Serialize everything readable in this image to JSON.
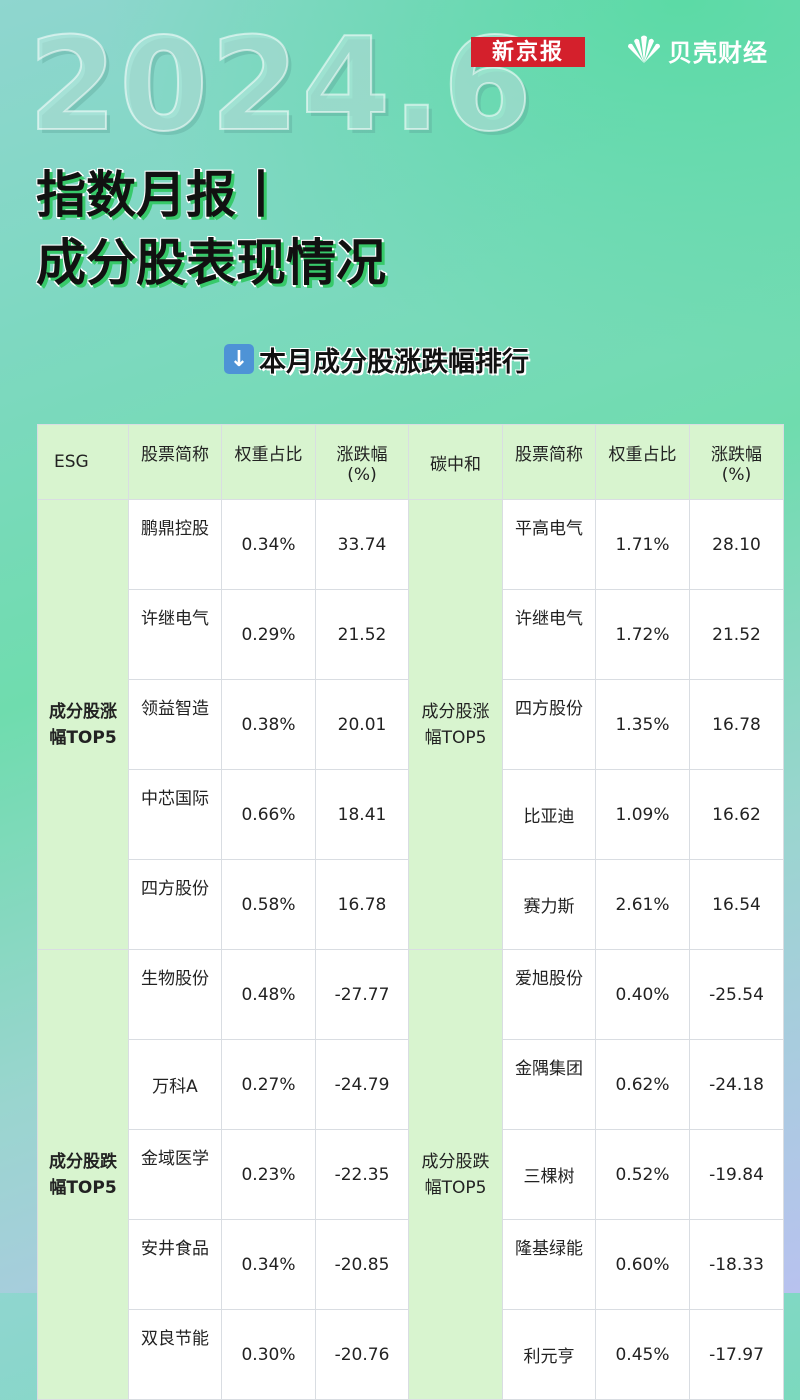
{
  "header": {
    "year": "2024.6",
    "brand_xinjingbao": "新京报",
    "brand_beike": "贝壳财经",
    "title_line1": "指数月报丨",
    "title_line2": "成分股表现情况",
    "subtitle": "本月成分股涨跌幅排行"
  },
  "table": {
    "headers": {
      "esg": "ESG",
      "name": "股票简称",
      "weight": "权重占比",
      "change_l1": "涨跌幅",
      "change_l2": "(%)",
      "tanzhonghe": "碳中和"
    },
    "categories": {
      "gain_l1": "成分股涨",
      "gain_l2": "幅TOP5",
      "loss_l1": "成分股跌",
      "loss_l2": "幅TOP5"
    },
    "rows": [
      {
        "esg_name": "鹏鼎控股",
        "esg_weight": "0.34%",
        "esg_change": "33.74",
        "c_name": "平高电气",
        "c_weight": "1.71%",
        "c_change": "28.10"
      },
      {
        "esg_name": "许继电气",
        "esg_weight": "0.29%",
        "esg_change": "21.52",
        "c_name": "许继电气",
        "c_weight": "1.72%",
        "c_change": "21.52"
      },
      {
        "esg_name": "领益智造",
        "esg_weight": "0.38%",
        "esg_change": "20.01",
        "c_name": "四方股份",
        "c_weight": "1.35%",
        "c_change": "16.78"
      },
      {
        "esg_name": "中芯国际",
        "esg_weight": "0.66%",
        "esg_change": "18.41",
        "c_name": "比亚迪",
        "c_weight": "1.09%",
        "c_change": "16.62"
      },
      {
        "esg_name": "四方股份",
        "esg_weight": "0.58%",
        "esg_change": "16.78",
        "c_name": "赛力斯",
        "c_weight": "2.61%",
        "c_change": "16.54"
      },
      {
        "esg_name": "生物股份",
        "esg_weight": "0.48%",
        "esg_change": "-27.77",
        "c_name": "爱旭股份",
        "c_weight": "0.40%",
        "c_change": "-25.54"
      },
      {
        "esg_name": "万科A",
        "esg_weight": "0.27%",
        "esg_change": "-24.79",
        "c_name": "金隅集团",
        "c_weight": "0.62%",
        "c_change": "-24.18"
      },
      {
        "esg_name": "金域医学",
        "esg_weight": "0.23%",
        "esg_change": "-22.35",
        "c_name": "三棵树",
        "c_weight": "0.52%",
        "c_change": "-19.84"
      },
      {
        "esg_name": "安井食品",
        "esg_weight": "0.34%",
        "esg_change": "-20.85",
        "c_name": "隆基绿能",
        "c_weight": "0.60%",
        "c_change": "-18.33"
      },
      {
        "esg_name": "双良节能",
        "esg_weight": "0.30%",
        "esg_change": "-20.76",
        "c_name": "利元亨",
        "c_weight": "0.45%",
        "c_change": "-17.97"
      }
    ]
  }
}
